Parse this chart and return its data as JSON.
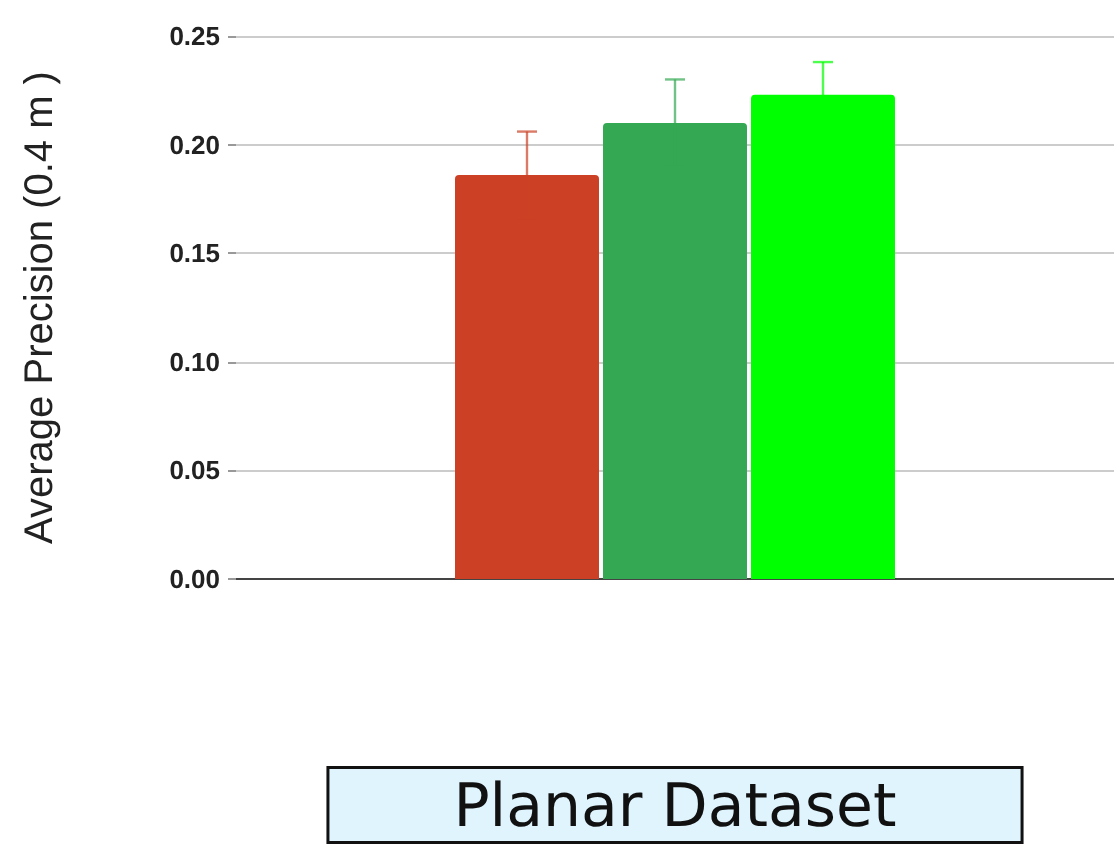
{
  "chart_data": {
    "type": "bar",
    "ylabel": "Average Precision (0.4 m )",
    "xlabel": "Planar Dataset",
    "categories": [
      null
    ],
    "series": [
      {
        "color": "#cc4125",
        "values": [
          0.186
        ],
        "errors": [
          0.02
        ]
      },
      {
        "color": "#34a853",
        "values": [
          0.21
        ],
        "errors": [
          0.02
        ]
      },
      {
        "color": "#00ff00",
        "values": [
          0.223
        ],
        "errors": [
          0.015
        ]
      }
    ],
    "ylim": [
      0,
      0.25
    ],
    "yticks": [
      {
        "value": 0,
        "label": "0.00"
      },
      0.05,
      {
        "value": 0.1,
        "label": "0.10"
      },
      0.15,
      {
        "value": 0.2,
        "label": "0.20"
      },
      0.25
    ],
    "grid": "y"
  }
}
